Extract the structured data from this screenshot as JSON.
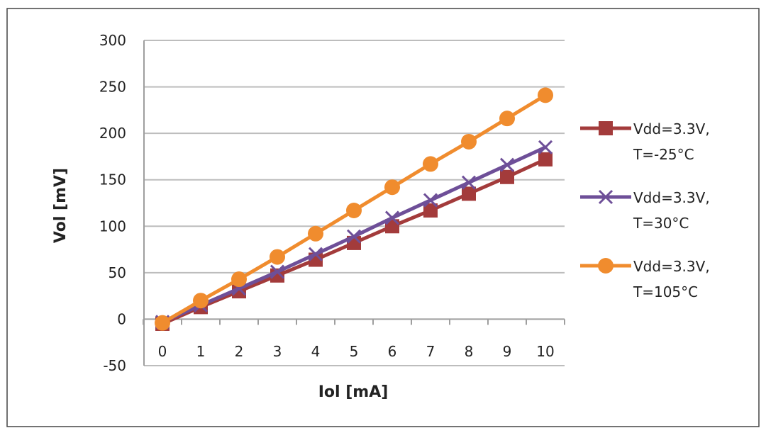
{
  "chart_data": {
    "type": "line",
    "title": "",
    "xlabel": "Iol [mA]",
    "ylabel": "Vol [mV]",
    "x": [
      0,
      1,
      2,
      3,
      4,
      5,
      6,
      7,
      8,
      9,
      10
    ],
    "xlim": [
      0,
      10
    ],
    "ylim": [
      -50,
      300
    ],
    "yticks": [
      -50,
      0,
      50,
      100,
      150,
      200,
      250,
      300
    ],
    "grid": true,
    "legend_position": "right",
    "series": [
      {
        "name": "Vdd=3.3V, T=-25°C",
        "legend_lines": [
          "Vdd=3.3V,",
          "T=-25°C"
        ],
        "color": "#a33b3b",
        "marker": "square",
        "values": [
          -5,
          13,
          30,
          47,
          64,
          82,
          100,
          117,
          135,
          153,
          172
        ]
      },
      {
        "name": "Vdd=3.3V, T=30°C",
        "legend_lines": [
          "Vdd=3.3V,",
          "T=30°C"
        ],
        "color": "#6e4f98",
        "marker": "x",
        "values": [
          -3,
          15,
          33,
          51,
          70,
          89,
          109,
          128,
          147,
          166,
          185
        ]
      },
      {
        "name": "Vdd=3.3V, T=105°C",
        "legend_lines": [
          "Vdd=3.3V,",
          "T=105°C"
        ],
        "color": "#f08c2e",
        "marker": "circle",
        "values": [
          -4,
          20,
          43,
          67,
          92,
          117,
          142,
          167,
          191,
          216,
          241
        ]
      }
    ]
  }
}
